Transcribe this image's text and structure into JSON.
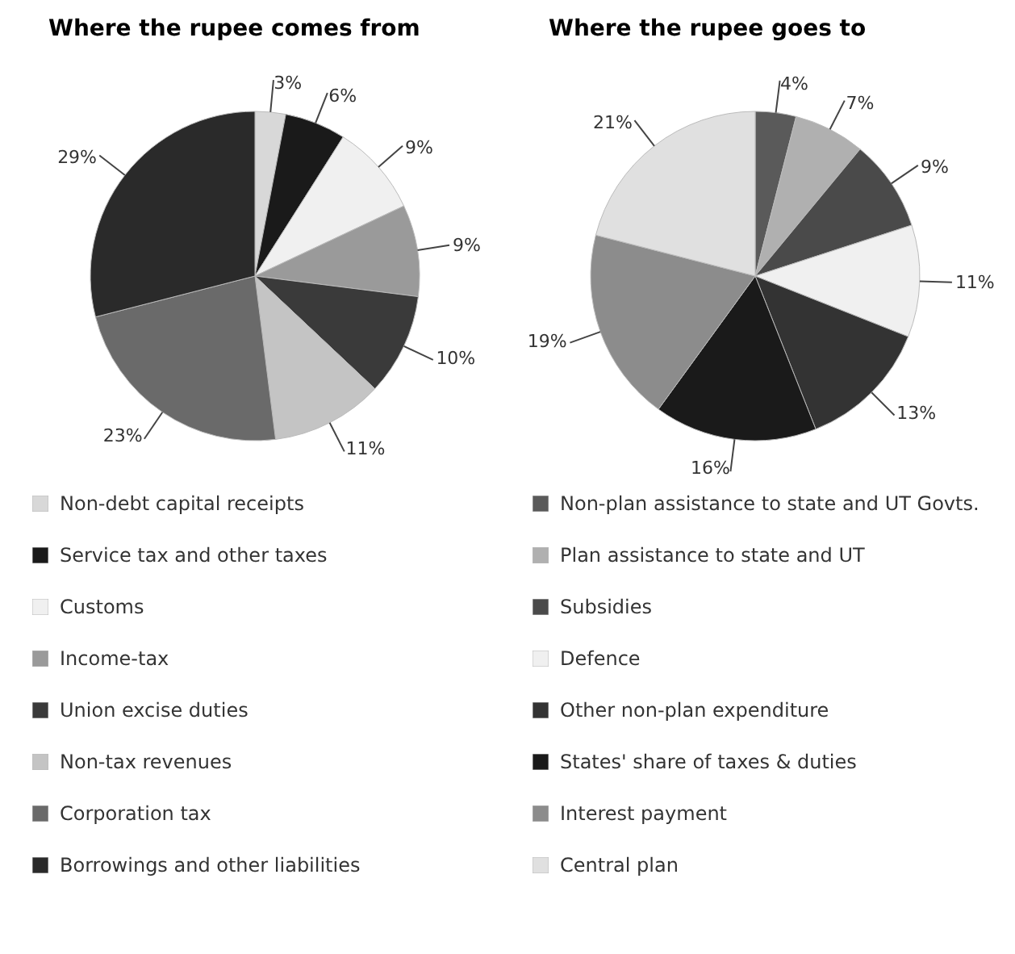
{
  "chart_data": [
    {
      "type": "pie",
      "title": "Where the rupee comes from",
      "categories": [
        "Non-debt capital receipts",
        "Service tax and other taxes",
        "Customs",
        "Income-tax",
        "Union excise duties",
        "Non-tax revenues",
        "Corporation tax",
        "Borrowings and other liabilities"
      ],
      "values": [
        3,
        6,
        9,
        9,
        10,
        11,
        23,
        29
      ],
      "value_labels": [
        "3%",
        "6%",
        "9%",
        "9%",
        "10%",
        "11%",
        "23%",
        "29%"
      ],
      "colors": [
        "#d8d8d8",
        "#1a1a1a",
        "#f0f0f0",
        "#9a9a9a",
        "#3a3a3a",
        "#c4c4c4",
        "#6a6a6a",
        "#2a2a2a"
      ],
      "legend": "bottom"
    },
    {
      "type": "pie",
      "title": "Where the rupee goes to",
      "categories": [
        "Non-plan assistance to state and UT Govts.",
        "Plan assistance to state and UT",
        "Subsidies",
        "Defence",
        "Other non-plan expenditure",
        "States' share of taxes & duties",
        "Interest payment",
        "Central plan"
      ],
      "values": [
        4,
        7,
        9,
        11,
        13,
        16,
        19,
        21
      ],
      "value_labels": [
        "4%",
        "7%",
        "9%",
        "11%",
        "13%",
        "16%",
        "19%",
        "21%"
      ],
      "colors": [
        "#5a5a5a",
        "#b0b0b0",
        "#4a4a4a",
        "#f0f0f0",
        "#333333",
        "#1a1a1a",
        "#8c8c8c",
        "#e0e0e0"
      ],
      "legend": "bottom"
    }
  ]
}
